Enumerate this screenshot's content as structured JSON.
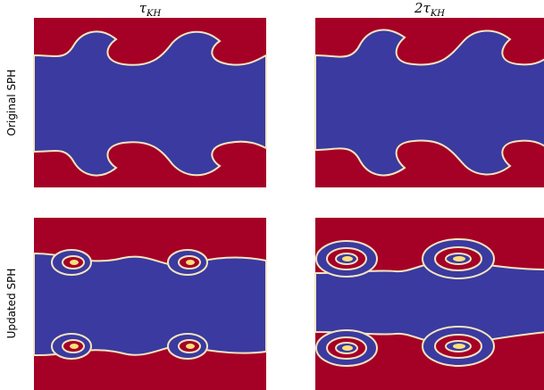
{
  "columns": [
    {
      "symbol": "τ",
      "subscript": "KH"
    },
    {
      "symbol": "2τ",
      "subscript": "KH"
    }
  ],
  "rows": [
    "Original SPH",
    "Updated SPH"
  ]
}
